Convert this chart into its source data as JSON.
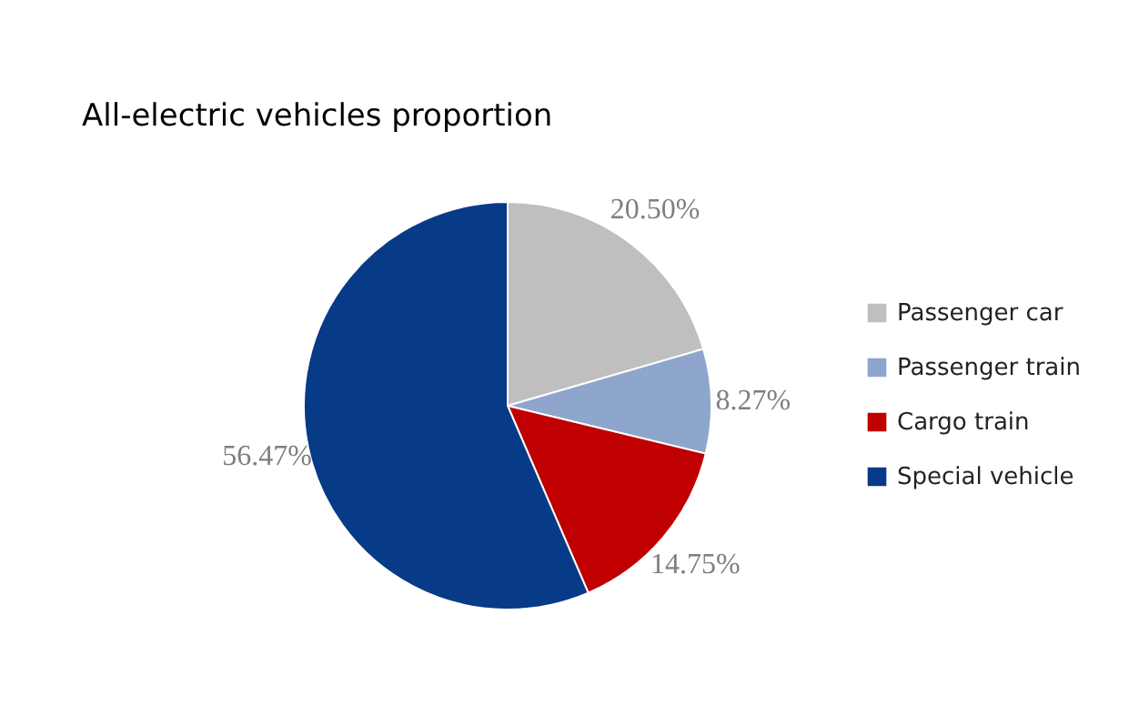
{
  "chart_data": {
    "type": "pie",
    "title": "All-electric vehicles proportion",
    "categories": [
      "Passenger car",
      "Passenger train",
      "Cargo train",
      "Special vehicle"
    ],
    "values": [
      20.5,
      8.27,
      14.75,
      56.47
    ],
    "colors": [
      "#bfbfbf",
      "#8ea5cc",
      "#c00000",
      "#073a87"
    ],
    "value_labels": [
      "20.50%",
      "8.27%",
      "14.75%",
      "56.47%"
    ],
    "legend": "right"
  }
}
